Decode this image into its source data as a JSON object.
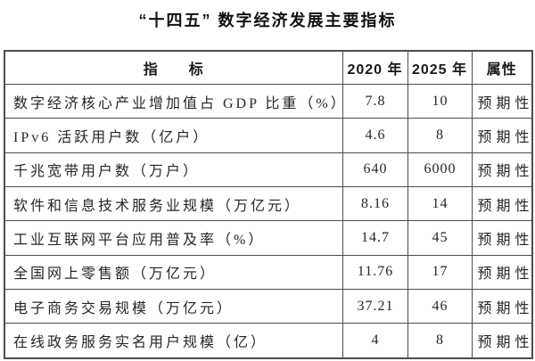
{
  "title": "“十四五” 数字经济发展主要指标",
  "table": {
    "columns": {
      "indicator": "指　　标",
      "y2020": "2020 年",
      "y2025": "2025 年",
      "attribute": "属性"
    },
    "rows": [
      {
        "indicator": "数字经济核心产业增加值占 GDP 比重（%）",
        "y2020": "7.8",
        "y2025": "10",
        "attribute": "预期性"
      },
      {
        "indicator": "IPv6 活跃用户数（亿户）",
        "y2020": "4.6",
        "y2025": "8",
        "attribute": "预期性"
      },
      {
        "indicator": "千兆宽带用户数（万户）",
        "y2020": "640",
        "y2025": "6000",
        "attribute": "预期性"
      },
      {
        "indicator": "软件和信息技术服务业规模（万亿元）",
        "y2020": "8.16",
        "y2025": "14",
        "attribute": "预期性"
      },
      {
        "indicator": "工业互联网平台应用普及率（%）",
        "y2020": "14.7",
        "y2025": "45",
        "attribute": "预期性"
      },
      {
        "indicator": "全国网上零售额（万亿元）",
        "y2020": "11.76",
        "y2025": "17",
        "attribute": "预期性"
      },
      {
        "indicator": "电子商务交易规模（万亿元）",
        "y2020": "37.21",
        "y2025": "46",
        "attribute": "预期性"
      },
      {
        "indicator": "在线政务服务实名用户规模（亿）",
        "y2020": "4",
        "y2025": "8",
        "attribute": "预期性"
      }
    ]
  },
  "colors": {
    "border": "#4d4d4d",
    "text": "#262626",
    "title_text": "#111111",
    "background": "#ffffff"
  }
}
